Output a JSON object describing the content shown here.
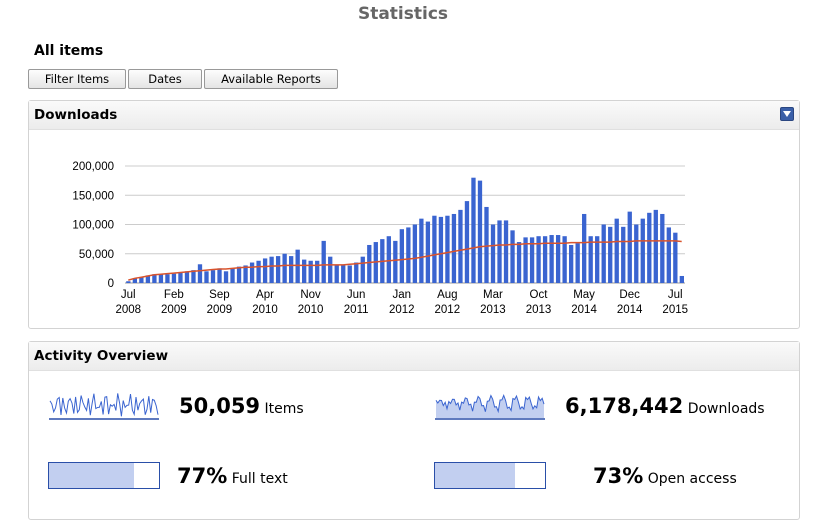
{
  "page": {
    "title": "Statistics",
    "section": "All items"
  },
  "toolbar": {
    "buttons": [
      "Filter Items",
      "Dates",
      "Available Reports"
    ]
  },
  "downloads_panel": {
    "title": "Downloads",
    "collapse_icon": "triangle-down-icon"
  },
  "colors": {
    "bar": "#3a64d0",
    "trend": "#d9532c",
    "spark": "#3a64d0",
    "fill": "#c2cff0",
    "border": "#2a4fa8"
  },
  "chart_data": {
    "type": "bar",
    "y_ticks": [
      "0",
      "50,000",
      "100,000",
      "150,000",
      "200,000"
    ],
    "ylim": [
      0,
      200000
    ],
    "x_ticks": [
      {
        "month": "Jul",
        "year": "2008",
        "index": 0
      },
      {
        "month": "Feb",
        "year": "2009",
        "index": 7
      },
      {
        "month": "Sep",
        "year": "2009",
        "index": 14
      },
      {
        "month": "Apr",
        "year": "2010",
        "index": 21
      },
      {
        "month": "Nov",
        "year": "2010",
        "index": 28
      },
      {
        "month": "Jun",
        "year": "2011",
        "index": 35
      },
      {
        "month": "Jan",
        "year": "2012",
        "index": 42
      },
      {
        "month": "Aug",
        "year": "2012",
        "index": 49
      },
      {
        "month": "Mar",
        "year": "2013",
        "index": 56
      },
      {
        "month": "Oct",
        "year": "2013",
        "index": 63
      },
      {
        "month": "May",
        "year": "2014",
        "index": 70
      },
      {
        "month": "Dec",
        "year": "2014",
        "index": 77
      },
      {
        "month": "Jul",
        "year": "2015",
        "index": 84
      }
    ],
    "series": [
      {
        "values": [
          3000,
          8000,
          10000,
          13000,
          15000,
          15000,
          15000,
          16000,
          18000,
          20000,
          22000,
          32000,
          20000,
          22000,
          25000,
          20000,
          25000,
          28000,
          30000,
          35000,
          38000,
          42000,
          45000,
          46000,
          50000,
          46000,
          57000,
          40000,
          38000,
          38000,
          72000,
          45000,
          30000,
          30000,
          30000,
          35000,
          45000,
          65000,
          70000,
          75000,
          80000,
          72000,
          92000,
          95000,
          100000,
          110000,
          105000,
          115000,
          113000,
          115000,
          118000,
          125000,
          140000,
          180000,
          175000,
          130000,
          100000,
          107000,
          107000,
          90000,
          70000,
          78000,
          78000,
          80000,
          80000,
          82000,
          82000,
          80000,
          65000,
          68000,
          118000,
          80000,
          80000,
          100000,
          96000,
          110000,
          96000,
          122000,
          100000,
          110000,
          120000,
          125000,
          118000,
          95000,
          86000,
          12000
        ]
      },
      {
        "trend": [
          5000,
          8000,
          10000,
          12000,
          14000,
          15000,
          16000,
          17000,
          18000,
          19000,
          20000,
          21000,
          22000,
          23000,
          24000,
          24000,
          25000,
          26000,
          27000,
          27000,
          28000,
          28000,
          29000,
          29000,
          30000,
          30000,
          30000,
          30000,
          30000,
          30000,
          31000,
          31000,
          31000,
          31000,
          32000,
          33000,
          34000,
          35000,
          36000,
          37000,
          38000,
          39000,
          40000,
          41000,
          42000,
          44000,
          46000,
          48000,
          50000,
          52000,
          54000,
          56000,
          58000,
          60000,
          62000,
          63000,
          64000,
          65000,
          65000,
          66000,
          66000,
          67000,
          67000,
          67000,
          68000,
          68000,
          68000,
          68000,
          69000,
          69000,
          69000,
          70000,
          70000,
          70000,
          70000,
          71000,
          71000,
          71000,
          72000,
          72000,
          72000,
          72000,
          72000,
          72000,
          72000,
          71000
        ]
      }
    ]
  },
  "activity_panel": {
    "title": "Activity Overview",
    "items": {
      "number": "50,059",
      "label": "Items"
    },
    "downloads": {
      "number": "6,178,442",
      "label": "Downloads"
    },
    "fulltext": {
      "number": "77%",
      "label": "Full text",
      "value": 0.77
    },
    "openaccess": {
      "number": "73%",
      "label": "Open access",
      "value": 0.73
    }
  }
}
